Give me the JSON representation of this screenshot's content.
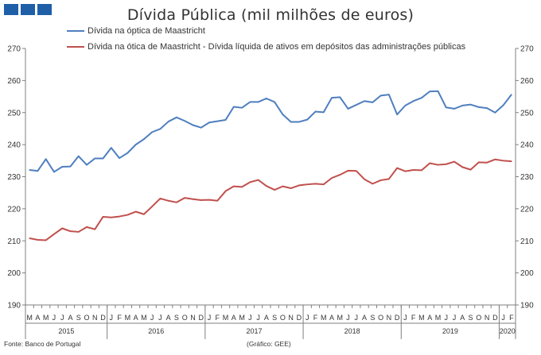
{
  "header": {
    "title": "Dívida Pública (mil milhões de euros)",
    "logo_icon": "institution-logo-icon"
  },
  "footer": {
    "source": "Fonte: Banco de Portugal",
    "credit": "(Gráfico: GEE)"
  },
  "colors": {
    "blue": "#4f7fbf",
    "red": "#c0504d",
    "axis": "#7f7f7f",
    "text": "#333333"
  },
  "chart_data": {
    "type": "line",
    "title": "Dívida Pública (mil milhões de euros)",
    "ylim": [
      190,
      270
    ],
    "yticks": [
      190,
      200,
      210,
      220,
      230,
      240,
      250,
      260,
      270
    ],
    "secondary_yaxis": true,
    "grid": false,
    "legend_position": "top-left",
    "x_month_labels": [
      "M",
      "A",
      "M",
      "J",
      "J",
      "A",
      "S",
      "O",
      "N",
      "D",
      "J",
      "F",
      "M",
      "A",
      "M",
      "J",
      "J",
      "A",
      "S",
      "O",
      "N",
      "D",
      "J",
      "F",
      "M",
      "A",
      "M",
      "J",
      "J",
      "A",
      "S",
      "O",
      "N",
      "D",
      "J",
      "F",
      "M",
      "A",
      "M",
      "J",
      "J",
      "A",
      "S",
      "O",
      "N",
      "D",
      "J",
      "F",
      "M",
      "A",
      "M",
      "J",
      "J",
      "A",
      "S",
      "O",
      "N",
      "D",
      "J",
      "F"
    ],
    "years": [
      {
        "label": "2015",
        "start": 0,
        "count": 10
      },
      {
        "label": "2016",
        "start": 10,
        "count": 12
      },
      {
        "label": "2017",
        "start": 22,
        "count": 12
      },
      {
        "label": "2018",
        "start": 34,
        "count": 12
      },
      {
        "label": "2019",
        "start": 46,
        "count": 12
      },
      {
        "label": "2020",
        "start": 58,
        "count": 2
      }
    ],
    "series": [
      {
        "name": "Dívida na óptica de Maastricht",
        "color": "#4f7fbf",
        "values": [
          232.1,
          231.8,
          235.5,
          231.5,
          233.1,
          233.2,
          236.4,
          233.7,
          235.7,
          235.7,
          239.0,
          235.8,
          237.4,
          240.0,
          241.7,
          243.9,
          244.9,
          247.2,
          248.5,
          247.4,
          246.1,
          245.3,
          246.9,
          247.3,
          247.7,
          251.8,
          251.5,
          253.3,
          253.3,
          254.4,
          253.3,
          249.4,
          247.1,
          247.1,
          247.8,
          250.3,
          250.1,
          254.6,
          254.8,
          251.2,
          252.4,
          253.6,
          253.2,
          255.3,
          255.6,
          249.4,
          252.2,
          253.6,
          254.6,
          256.6,
          256.7,
          251.6,
          251.2,
          252.2,
          252.5,
          251.7,
          251.4,
          250.0,
          252.3,
          255.6
        ]
      },
      {
        "name": "Dívida na ótica de Maastricht - Dívida líquida de ativos em depósitos das administrações públicas",
        "color": "#c0504d",
        "values": [
          210.8,
          210.3,
          210.2,
          212.1,
          213.9,
          213.0,
          212.8,
          214.3,
          213.6,
          217.5,
          217.3,
          217.6,
          218.1,
          219.1,
          218.3,
          220.7,
          223.2,
          222.5,
          222.0,
          223.4,
          223.0,
          222.7,
          222.8,
          222.5,
          225.5,
          227.0,
          226.8,
          228.3,
          229.0,
          227.1,
          225.9,
          227.0,
          226.4,
          227.3,
          227.6,
          227.8,
          227.6,
          229.6,
          230.6,
          231.9,
          231.8,
          229.2,
          227.8,
          228.9,
          229.3,
          232.7,
          231.7,
          232.1,
          232.0,
          234.2,
          233.7,
          233.9,
          234.7,
          233.0,
          232.2,
          234.5,
          234.4,
          235.4,
          235.0,
          234.8
        ]
      }
    ]
  }
}
